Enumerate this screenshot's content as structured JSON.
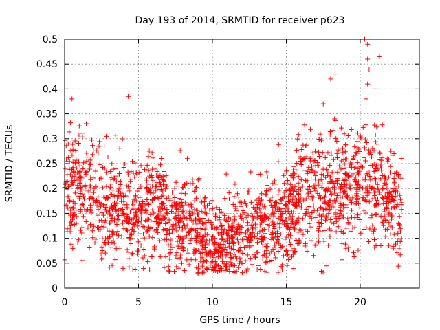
{
  "chart_data": {
    "type": "scatter",
    "title": "Day 193 of 2014, SRMTID for receiver p623",
    "xlabel": "GPS time / hours",
    "ylabel": "SRMTID / TECUs",
    "xlim": [
      0,
      24
    ],
    "ylim": [
      0,
      0.5
    ],
    "xticks": [
      0,
      5,
      10,
      15,
      20
    ],
    "yticks": [
      0,
      0.05,
      0.1,
      0.15,
      0.2,
      0.25,
      0.3,
      0.35,
      0.4,
      0.45,
      0.5
    ],
    "xtick_labels": [
      "0",
      "5",
      "10",
      "15",
      "20"
    ],
    "ytick_labels": [
      "0",
      "0.05",
      "0.1",
      "0.15",
      "0.2",
      "0.25",
      "0.3",
      "0.35",
      "0.4",
      "0.45",
      "0.5"
    ],
    "grid": true,
    "marker": "+",
    "color": "#ff0000",
    "series": [
      {
        "name": "SRMTID p623",
        "profile": [
          {
            "x": 0.0,
            "y": 0.2
          },
          {
            "x": 1.0,
            "y": 0.21
          },
          {
            "x": 2.0,
            "y": 0.17
          },
          {
            "x": 3.0,
            "y": 0.16
          },
          {
            "x": 4.0,
            "y": 0.16
          },
          {
            "x": 5.0,
            "y": 0.15
          },
          {
            "x": 6.0,
            "y": 0.17
          },
          {
            "x": 7.0,
            "y": 0.14
          },
          {
            "x": 8.0,
            "y": 0.12
          },
          {
            "x": 9.0,
            "y": 0.11
          },
          {
            "x": 10.0,
            "y": 0.08
          },
          {
            "x": 11.0,
            "y": 0.09
          },
          {
            "x": 12.0,
            "y": 0.1
          },
          {
            "x": 13.0,
            "y": 0.11
          },
          {
            "x": 14.0,
            "y": 0.13
          },
          {
            "x": 15.0,
            "y": 0.15
          },
          {
            "x": 16.0,
            "y": 0.18
          },
          {
            "x": 17.0,
            "y": 0.2
          },
          {
            "x": 18.0,
            "y": 0.2
          },
          {
            "x": 19.0,
            "y": 0.19
          },
          {
            "x": 20.0,
            "y": 0.21
          },
          {
            "x": 21.0,
            "y": 0.22
          },
          {
            "x": 22.0,
            "y": 0.18
          },
          {
            "x": 22.8,
            "y": 0.16
          }
        ],
        "x_range": [
          0.0,
          22.8
        ],
        "spread": 0.055,
        "approx_point_count": 2200,
        "notable_points": [
          {
            "x": 0.5,
            "y": 0.38
          },
          {
            "x": 4.3,
            "y": 0.385
          },
          {
            "x": 8.3,
            "y": 0.26
          },
          {
            "x": 8.2,
            "y": 0.0
          },
          {
            "x": 10.2,
            "y": 0.035
          },
          {
            "x": 17.5,
            "y": 0.37
          },
          {
            "x": 18.3,
            "y": 0.43
          },
          {
            "x": 18.0,
            "y": 0.42
          },
          {
            "x": 20.3,
            "y": 0.5
          },
          {
            "x": 20.5,
            "y": 0.49
          },
          {
            "x": 20.5,
            "y": 0.46
          },
          {
            "x": 20.6,
            "y": 0.44
          },
          {
            "x": 21.3,
            "y": 0.465
          },
          {
            "x": 20.5,
            "y": 0.41
          },
          {
            "x": 20.4,
            "y": 0.38
          },
          {
            "x": 21.0,
            "y": 0.4
          }
        ]
      }
    ]
  }
}
